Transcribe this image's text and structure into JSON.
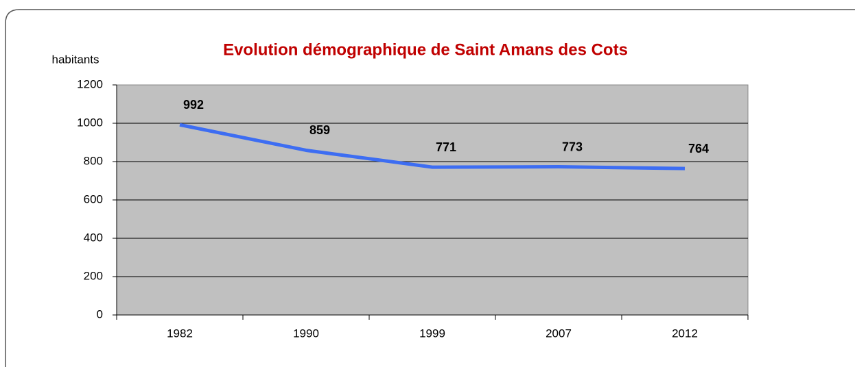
{
  "chart_data": {
    "type": "line",
    "title": "Evolution démographique de Saint Amans des Cots",
    "y_label": "habitants",
    "categories": [
      "1982",
      "1990",
      "1999",
      "2007",
      "2012"
    ],
    "series": [
      {
        "name": "habitants",
        "color": "#3d6df2",
        "values": [
          992,
          859,
          771,
          773,
          764
        ]
      }
    ],
    "ylim": [
      0,
      1200
    ],
    "yticks": [
      0,
      200,
      400,
      600,
      800,
      1000,
      1200
    ],
    "grid": true,
    "plot_background": "#c0c0c0",
    "data_labels": true
  }
}
